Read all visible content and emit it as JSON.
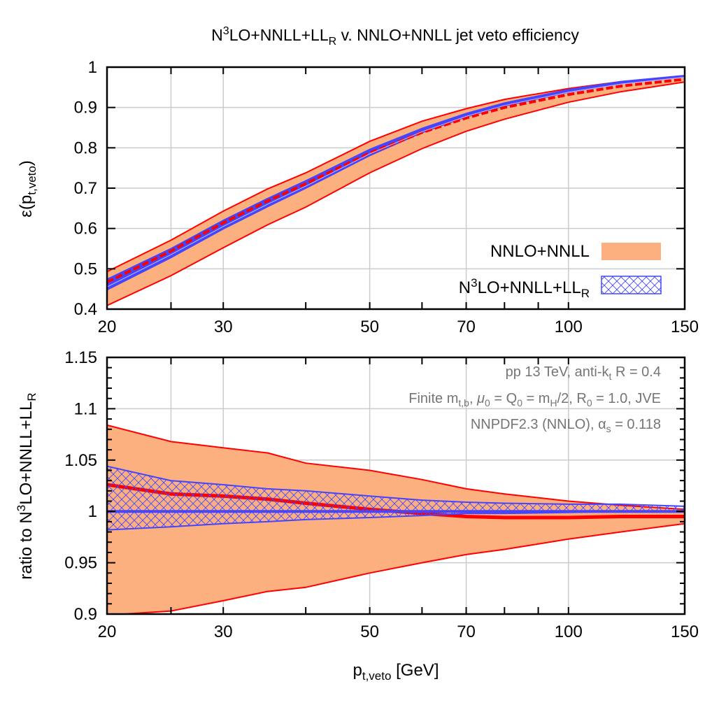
{
  "title": {
    "pre": "N",
    "sup": "3",
    "mid": "LO+NNLL+LL",
    "sub": "R",
    "post": " v. NNLO+NNLL jet veto efficiency"
  },
  "colors": {
    "nnlo_fill": "#fdb07f",
    "nnlo_line": "#ff0000",
    "n3lo": "#4545ff",
    "grid": "#cccccc",
    "annotation": "#757575"
  },
  "chart_data": [
    {
      "type": "area",
      "panel": "top",
      "ylabel": {
        "pre": "ε(p",
        "sub": "t,veto",
        "post": ")"
      },
      "xscale": "log",
      "xlim": [
        20,
        150
      ],
      "ylim": [
        0.4,
        1.0
      ],
      "xticks": [
        "20",
        "30",
        "50",
        "70",
        "100",
        "150"
      ],
      "yticks": [
        "0.4",
        "0.5",
        "0.6",
        "0.7",
        "0.8",
        "0.9",
        "1"
      ],
      "grid": true,
      "legend": {
        "placement": "bottom-right",
        "entries": [
          {
            "label": "NNLO+NNLL",
            "style": "solid orange band"
          },
          {
            "pre": "N",
            "sup": "3",
            "mid": "LO+NNLL+LL",
            "sub": "R",
            "style": "blue cross-hatched band"
          }
        ]
      },
      "x": [
        20,
        25,
        30,
        35,
        40,
        50,
        60,
        70,
        80,
        100,
        120,
        150
      ],
      "n3lo_central": [
        0.455,
        0.535,
        0.605,
        0.66,
        0.705,
        0.785,
        0.84,
        0.878,
        0.905,
        0.938,
        0.958,
        0.975
      ],
      "n3lo_band": {
        "lower": [
          0.447,
          0.527,
          0.598,
          0.653,
          0.699,
          0.78,
          0.837,
          0.876,
          0.903,
          0.937,
          0.958,
          0.975
        ],
        "upper": [
          0.475,
          0.551,
          0.621,
          0.675,
          0.719,
          0.797,
          0.849,
          0.886,
          0.912,
          0.945,
          0.965,
          0.98
        ]
      },
      "nnlo_band": {
        "lower": [
          0.409,
          0.483,
          0.552,
          0.609,
          0.653,
          0.738,
          0.798,
          0.841,
          0.871,
          0.913,
          0.939,
          0.963
        ],
        "upper": [
          0.493,
          0.571,
          0.643,
          0.698,
          0.738,
          0.816,
          0.866,
          0.897,
          0.92,
          0.947,
          0.964,
          0.977
        ],
        "central": [
          0.467,
          0.544,
          0.614,
          0.668,
          0.711,
          0.787,
          0.838,
          0.874,
          0.9,
          0.932,
          0.953,
          0.97
        ]
      }
    },
    {
      "type": "area",
      "panel": "bottom",
      "ylabel": {
        "pre": "ratio to N",
        "sup": "3",
        "mid": "LO+NNLL+LL",
        "sub": "R"
      },
      "xlabel": {
        "pre": "p",
        "sub": "t,veto",
        "post": " [GeV]"
      },
      "xscale": "log",
      "xlim": [
        20,
        150
      ],
      "ylim": [
        0.9,
        1.15
      ],
      "xticks": [
        "20",
        "30",
        "50",
        "70",
        "100",
        "150"
      ],
      "yticks": [
        "0.9",
        "0.95",
        "1",
        "1.05",
        "1.1",
        "1.15"
      ],
      "grid": true,
      "x": [
        20,
        25,
        30,
        35,
        40,
        50,
        60,
        70,
        80,
        100,
        120,
        150
      ],
      "nnlo_band": {
        "upper": [
          1.084,
          1.068,
          1.062,
          1.057,
          1.047,
          1.04,
          1.031,
          1.022,
          1.017,
          1.01,
          1.006,
          1.002
        ],
        "lower": [
          0.899,
          0.903,
          0.913,
          0.922,
          0.926,
          0.94,
          0.95,
          0.958,
          0.963,
          0.973,
          0.98,
          0.988
        ],
        "central": [
          1.026,
          1.017,
          1.015,
          1.012,
          1.008,
          1.002,
          0.998,
          0.995,
          0.994,
          0.994,
          0.995,
          0.995
        ]
      },
      "n3lo_band": {
        "upper": [
          1.044,
          1.03,
          1.026,
          1.022,
          1.02,
          1.015,
          1.011,
          1.009,
          1.008,
          1.007,
          1.007,
          1.005
        ],
        "lower": [
          0.982,
          0.985,
          0.988,
          0.99,
          0.992,
          0.994,
          0.996,
          0.998,
          0.998,
          0.999,
          1.0,
          1.0
        ],
        "central": [
          1,
          1,
          1,
          1,
          1,
          1,
          1,
          1,
          1,
          1,
          1,
          1
        ]
      },
      "annotations": {
        "line1": {
          "pre": "pp 13 TeV, anti-k",
          "sub": "t",
          "post": " R = 0.4"
        },
        "line2": {
          "a": "Finite m",
          "sub1": "t,b",
          "b": ", ",
          "mu": "μ",
          "sub2": "0",
          "c": " = Q",
          "sub3": "0",
          "d": " = m",
          "sub4": "H",
          "e": "/2, R",
          "sub5": "0",
          "f": " = 1.0, JVE"
        },
        "line3": {
          "pre": "NNPDF2.3 (NNLO), α",
          "sub": "s",
          "post": " = 0.118"
        }
      }
    }
  ]
}
